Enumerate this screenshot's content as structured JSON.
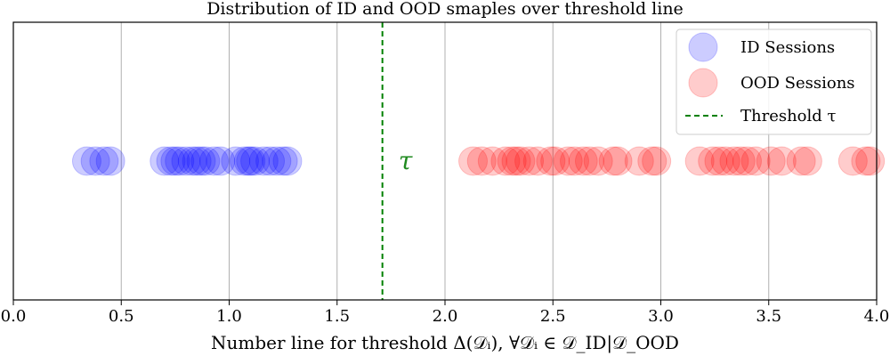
{
  "chart_data": {
    "type": "scatter",
    "title": "Distribution of ID and OOD smaples over threshold line",
    "xlabel": "Number line for threshold Δ(𝒟ᵢ),    ∀𝒟ᵢ ∈ 𝒟_ID|𝒟_OOD",
    "xlim": [
      0.0,
      4.0
    ],
    "ylim": [
      -1,
      1
    ],
    "x_ticks": [
      "0.0",
      "0.5",
      "1.0",
      "1.5",
      "2.0",
      "2.5",
      "3.0",
      "3.5",
      "4.0"
    ],
    "grid": "vertical",
    "legend_position": "top-right",
    "threshold": {
      "label": "Threshold τ",
      "value": 1.71,
      "annotation": "τ",
      "color": "#008000"
    },
    "series": [
      {
        "name": "ID Sessions",
        "color": "#0000ff",
        "y": 0,
        "x": [
          0.34,
          0.38,
          0.42,
          0.45,
          0.7,
          0.73,
          0.75,
          0.77,
          0.8,
          0.83,
          0.85,
          0.87,
          0.89,
          0.93,
          0.96,
          1.03,
          1.07,
          1.09,
          1.1,
          1.12,
          1.16,
          1.19,
          1.22,
          1.25,
          1.27
        ]
      },
      {
        "name": "OOD Sessions",
        "color": "#ff0000",
        "y": 0,
        "x": [
          2.13,
          2.17,
          2.22,
          2.28,
          2.31,
          2.33,
          2.35,
          2.39,
          2.43,
          2.49,
          2.51,
          2.57,
          2.6,
          2.64,
          2.67,
          2.71,
          2.78,
          2.8,
          2.9,
          2.96,
          2.98,
          3.18,
          3.24,
          3.27,
          3.3,
          3.34,
          3.37,
          3.4,
          3.44,
          3.51,
          3.56,
          3.65,
          3.68,
          3.89,
          3.95,
          3.97
        ]
      }
    ]
  }
}
